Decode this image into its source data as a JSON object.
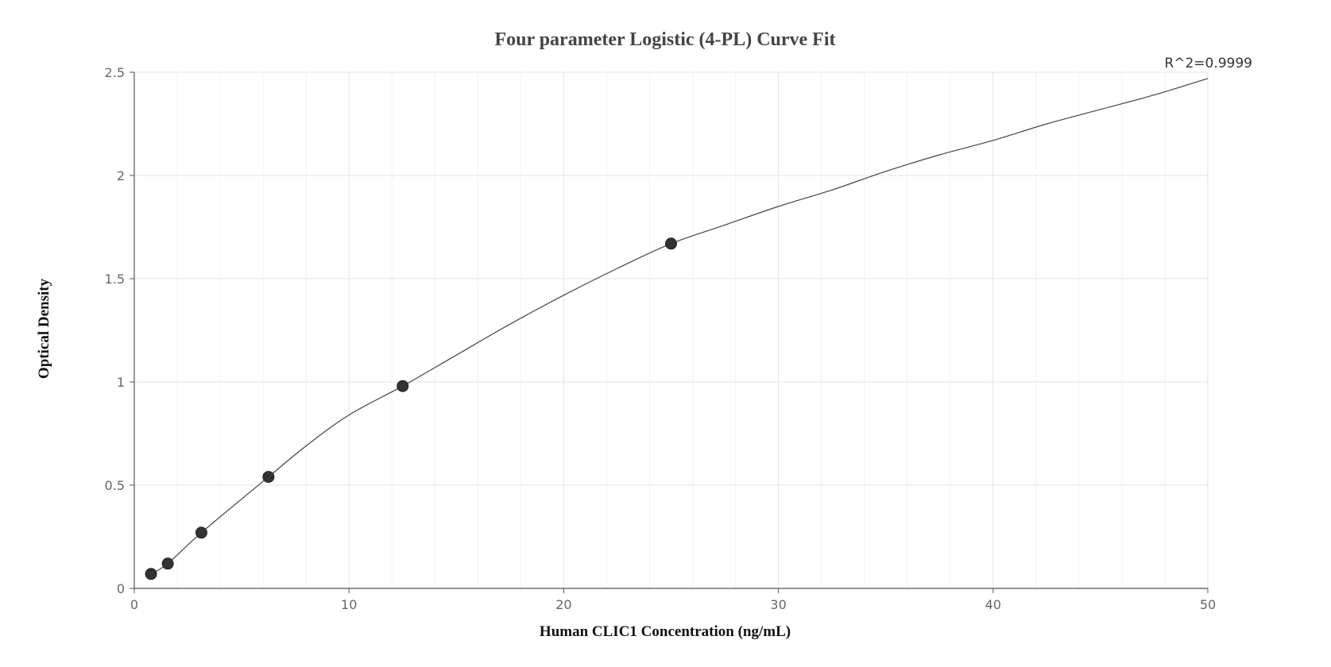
{
  "chart_data": {
    "type": "scatter",
    "title": "Four parameter Logistic (4-PL) Curve Fit",
    "xlabel": "Human CLIC1 Concentration (ng/mL)",
    "ylabel": "Optical Density",
    "annotation": "R^2=0.9999",
    "xlim": [
      0,
      50
    ],
    "ylim": [
      0,
      2.5
    ],
    "x_ticks": [
      0,
      10,
      20,
      30,
      40,
      50
    ],
    "y_ticks": [
      0,
      0.5,
      1,
      1.5,
      2,
      2.5
    ],
    "x_tick_labels": [
      "0",
      "10",
      "20",
      "30",
      "40",
      "50"
    ],
    "y_tick_labels": [
      "0",
      "0.5",
      "1",
      "1.5",
      "2",
      "2.5"
    ],
    "grid": true,
    "series": [
      {
        "marker": "circle",
        "color": "#333333",
        "x": [
          0.78,
          1.56,
          3.125,
          6.25,
          12.5,
          25
        ],
        "y": [
          0.07,
          0.12,
          0.27,
          0.54,
          0.98,
          1.67
        ]
      }
    ],
    "fit_curve": {
      "color": "#444444",
      "x": [
        0.78,
        1.56,
        3.125,
        6.25,
        8,
        10,
        12.5,
        15,
        17.5,
        20,
        22.5,
        25,
        27.5,
        30,
        32.5,
        35,
        37.5,
        40,
        42.5,
        45,
        47.5,
        50
      ],
      "y": [
        0.07,
        0.12,
        0.27,
        0.54,
        0.69,
        0.84,
        0.98,
        1.13,
        1.28,
        1.42,
        1.55,
        1.67,
        1.76,
        1.85,
        1.93,
        2.02,
        2.1,
        2.17,
        2.25,
        2.32,
        2.39,
        2.47
      ]
    }
  }
}
